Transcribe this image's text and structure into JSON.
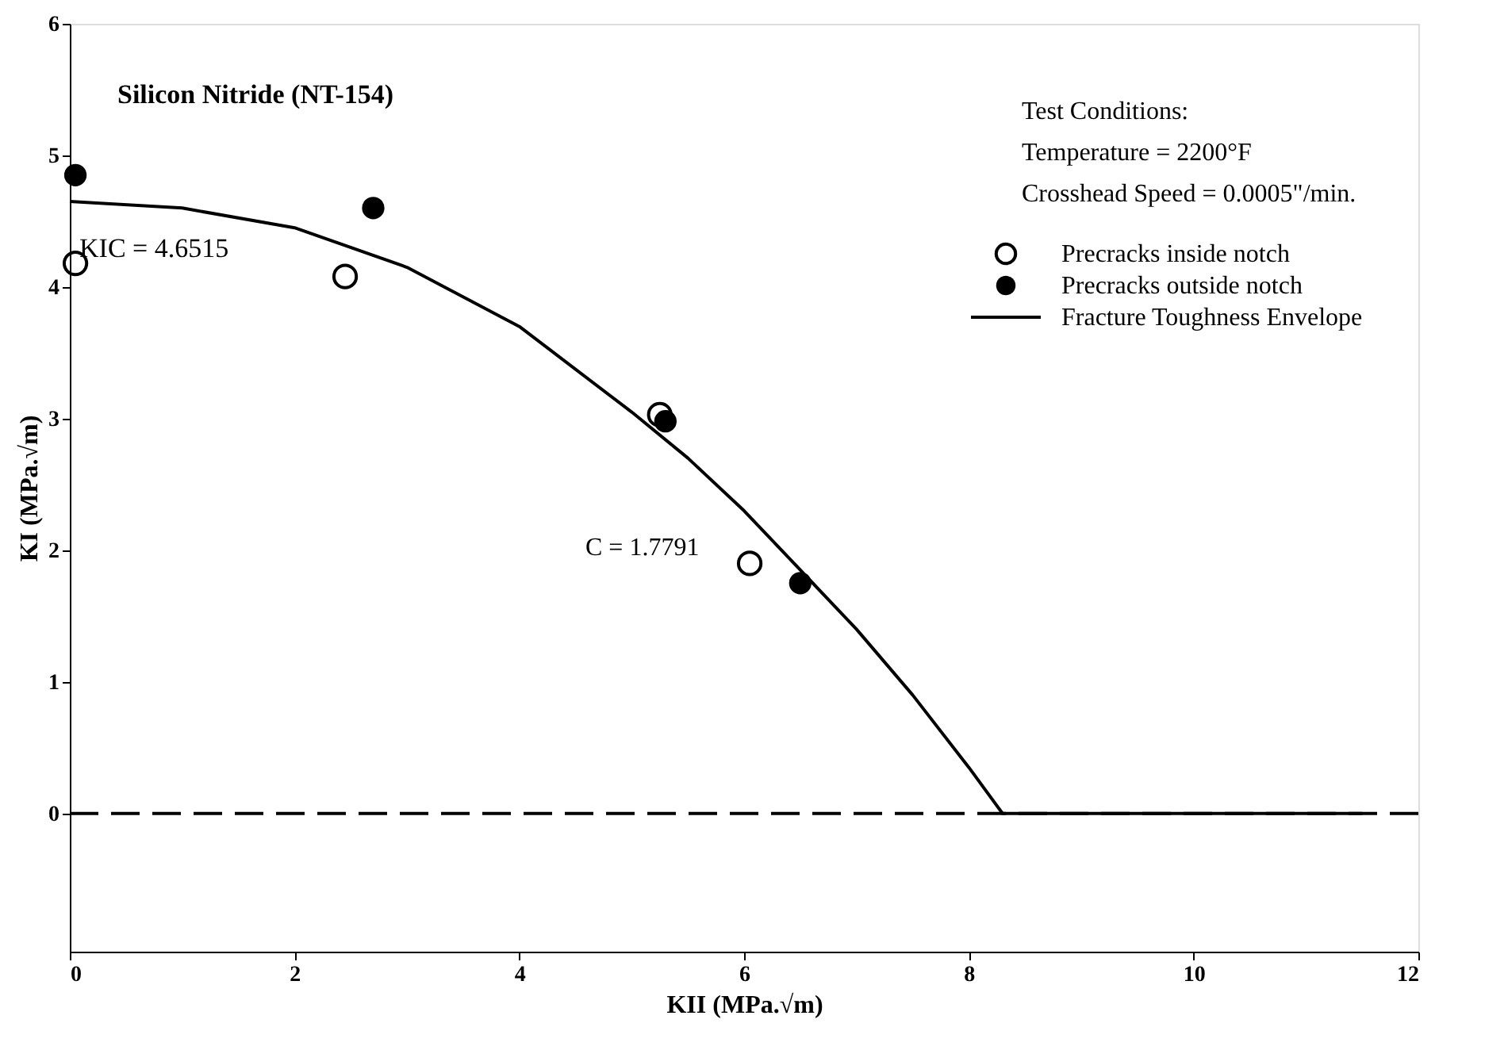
{
  "chart_data": {
    "type": "scatter",
    "title": "Silicon Nitride (NT-154)",
    "xlabel": "KII (MPa.√m)",
    "ylabel": "KI (MPa.√m)",
    "xlim": [
      0,
      12
    ],
    "xticks": [
      0,
      2,
      4,
      6,
      8,
      10,
      12
    ],
    "ylim": [
      -1.05,
      6
    ],
    "yticks": [
      0,
      1,
      2,
      3,
      4,
      5,
      6
    ],
    "grid": false,
    "legend": "top right",
    "series": [
      {
        "name": "Precracks inside notch",
        "marker": "circle",
        "color": "#000000",
        "x": [
          0.05,
          2.45,
          5.25,
          6.05
        ],
        "values": [
          4.18,
          4.08,
          3.03,
          1.9
        ]
      },
      {
        "name": "Precracks outside notch",
        "marker": "circle",
        "color": "#000000",
        "x": [
          0.05,
          2.7,
          5.3,
          6.5
        ],
        "values": [
          4.85,
          4.6,
          2.98,
          1.75
        ]
      },
      {
        "name": "Fracture Toughness Envelope",
        "type": "line",
        "line_style": "solid",
        "color": "#000000",
        "x": [
          0,
          1,
          2,
          3,
          4,
          5,
          5.5,
          6,
          6.5,
          7,
          7.5,
          8,
          8.3,
          11.5
        ],
        "values": [
          4.65,
          4.6,
          4.45,
          4.15,
          3.7,
          3.05,
          2.7,
          2.3,
          1.85,
          1.4,
          0.9,
          0.35,
          0,
          0
        ]
      }
    ],
    "ref_lines": [
      {
        "axis": "y",
        "value": 0,
        "line_style": "dashed",
        "color": "#000000"
      }
    ],
    "annotations": [
      {
        "text": "Test Conditions:"
      },
      {
        "text": "Temperature = 2200°F"
      },
      {
        "text": "Crosshead Speed = 0.0005\"/min."
      },
      {
        "text": "KIC = 4.6515",
        "x": 0,
        "y": 4.6515
      },
      {
        "text": "C = 1.7791"
      }
    ]
  }
}
